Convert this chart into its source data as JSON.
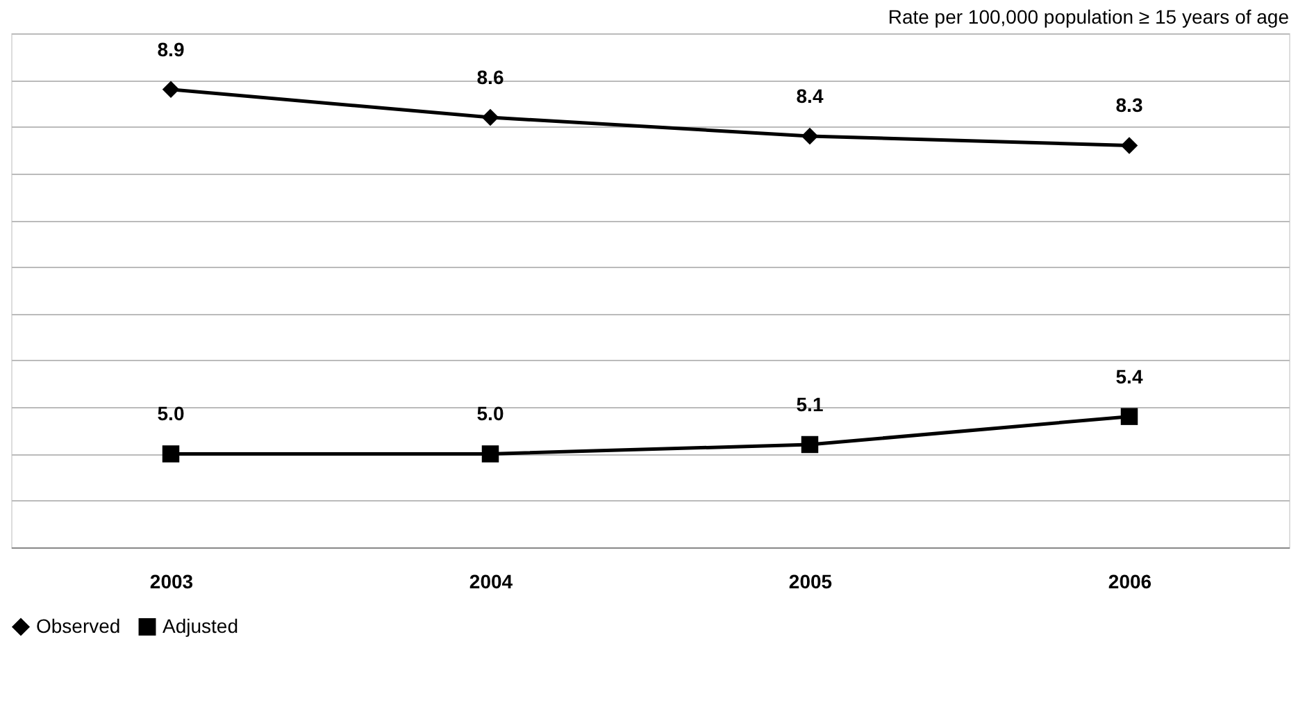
{
  "chart_data": {
    "type": "line",
    "ylabel": "Rate per 100,000 population ≥ 15 years of age",
    "categories": [
      "2003",
      "2004",
      "2005",
      "2006"
    ],
    "series": [
      {
        "name": "Observed",
        "color": "#000000",
        "marker": "diamond",
        "values": [
          8.9,
          8.6,
          8.4,
          8.3
        ],
        "value_labels": [
          "8.9",
          "8.6",
          "8.4",
          "8.3"
        ]
      },
      {
        "name": "Adjusted",
        "color": "#000000",
        "marker": "square",
        "values": [
          5.0,
          5.0,
          5.1,
          5.4
        ],
        "value_labels": [
          "5.0",
          "5.0",
          "5.1",
          "5.4"
        ]
      }
    ],
    "ylim": [
      4,
      9.5
    ],
    "grid": "y",
    "tick_labels": "x",
    "legend": "bottom",
    "line_style": "solid"
  }
}
